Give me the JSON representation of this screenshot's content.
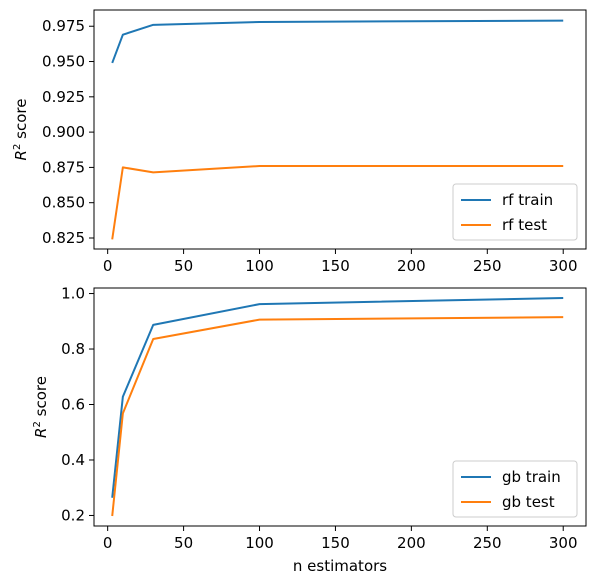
{
  "chart_data": [
    {
      "type": "line",
      "title": "",
      "xlabel": "",
      "ylabel": "R² score",
      "ylabel_parts": {
        "main": "R",
        "sup": "2",
        "rest": " score"
      },
      "x": [
        3,
        10,
        30,
        100,
        300
      ],
      "xlim": [
        -9,
        315
      ],
      "ylim": [
        0.8172,
        0.9865
      ],
      "xticks": [
        0,
        50,
        100,
        150,
        200,
        250,
        300
      ],
      "xtick_labels": [
        "0",
        "50",
        "100",
        "150",
        "200",
        "250",
        "300"
      ],
      "yticks": [
        0.825,
        0.85,
        0.875,
        0.9,
        0.925,
        0.95,
        0.975
      ],
      "ytick_labels": [
        "0.825",
        "0.850",
        "0.875",
        "0.900",
        "0.925",
        "0.950",
        "0.975"
      ],
      "legend_position": "lower-right",
      "series": [
        {
          "name": "rf train",
          "color": "#1f77b4",
          "values": [
            0.949,
            0.969,
            0.976,
            0.978,
            0.979
          ]
        },
        {
          "name": "rf test",
          "color": "#ff7f0e",
          "values": [
            0.824,
            0.875,
            0.8715,
            0.876,
            0.876
          ]
        }
      ]
    },
    {
      "type": "line",
      "title": "",
      "xlabel": "n estimators",
      "ylabel": "R² score",
      "ylabel_parts": {
        "main": "R",
        "sup": "2",
        "rest": " score"
      },
      "x": [
        3,
        10,
        30,
        100,
        300
      ],
      "xlim": [
        -9,
        315
      ],
      "ylim": [
        0.162,
        1.02
      ],
      "xticks": [
        0,
        50,
        100,
        150,
        200,
        250,
        300
      ],
      "xtick_labels": [
        "0",
        "50",
        "100",
        "150",
        "200",
        "250",
        "300"
      ],
      "yticks": [
        0.2,
        0.4,
        0.6,
        0.8,
        1.0
      ],
      "ytick_labels": [
        "0.2",
        "0.4",
        "0.6",
        "0.8",
        "1.0"
      ],
      "legend_position": "lower-right",
      "series": [
        {
          "name": "gb train",
          "color": "#1f77b4",
          "values": [
            0.264,
            0.628,
            0.887,
            0.962,
            0.984
          ]
        },
        {
          "name": "gb test",
          "color": "#ff7f0e",
          "values": [
            0.198,
            0.568,
            0.836,
            0.906,
            0.915
          ]
        }
      ]
    }
  ]
}
